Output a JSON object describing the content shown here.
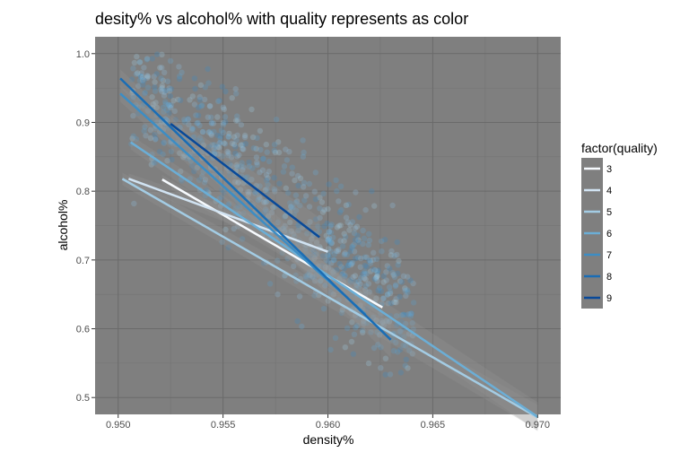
{
  "chart_data": {
    "type": "scatter",
    "title": "desity% vs alcohol% with quality represents as color",
    "xlabel": "density%",
    "ylabel": "alcohol%",
    "xlim": [
      0.9489,
      0.9711
    ],
    "ylim": [
      0.4755,
      1.0245
    ],
    "x_ticks": [
      0.95,
      0.955,
      0.96,
      0.965,
      0.97
    ],
    "y_ticks": [
      0.5,
      0.6,
      0.7,
      0.8,
      0.9,
      1.0
    ],
    "x_tick_labels": [
      "0.950",
      "0.955",
      "0.960",
      "0.965",
      "0.970"
    ],
    "y_tick_labels": [
      "0.5",
      "0.6",
      "0.7",
      "0.8",
      "0.9",
      "1.0"
    ],
    "grid": true,
    "panel_background": "#7f7f7f",
    "legend": {
      "title": "factor(quality)",
      "placement": "right",
      "background": "#7f7f7f",
      "entries": [
        "3",
        "4",
        "5",
        "6",
        "7",
        "8",
        "9"
      ]
    },
    "series": [
      {
        "name": "3",
        "color": "#f7fbff",
        "x": [
          0.9521,
          0.9626
        ],
        "y": [
          0.817,
          0.631
        ]
      },
      {
        "name": "4",
        "color": "#d1e3f2",
        "x": [
          0.9505,
          0.96
        ],
        "y": [
          0.818,
          0.712
        ]
      },
      {
        "name": "5",
        "color": "#a3cce4",
        "x": [
          0.9502,
          0.97
        ],
        "y": [
          0.818,
          0.471
        ]
      },
      {
        "name": "6",
        "color": "#6baed6",
        "x": [
          0.9506,
          0.97
        ],
        "y": [
          0.871,
          0.472
        ]
      },
      {
        "name": "7",
        "color": "#3d8dc4",
        "x": [
          0.9501,
          0.9618
        ],
        "y": [
          0.942,
          0.621
        ]
      },
      {
        "name": "8",
        "color": "#1a6db5",
        "x": [
          0.9501,
          0.963
        ],
        "y": [
          0.964,
          0.584
        ]
      },
      {
        "name": "9",
        "color": "#084999",
        "x": [
          0.9525,
          0.9596
        ],
        "y": [
          0.898,
          0.733
        ]
      }
    ]
  }
}
